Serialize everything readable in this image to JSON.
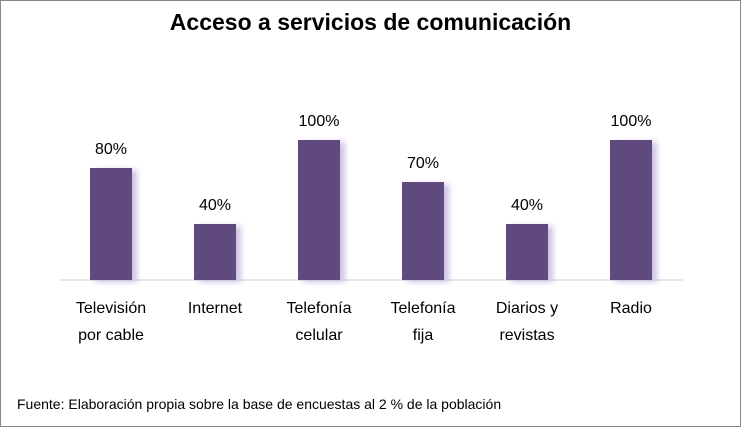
{
  "chart_data": {
    "type": "bar",
    "title": "Acceso a servicios de comunicación",
    "categories": [
      [
        "Televisión",
        "por cable"
      ],
      [
        "Internet"
      ],
      [
        "Telefonía",
        "celular"
      ],
      [
        "Telefonía",
        "fija"
      ],
      [
        "Diarios y",
        "revistas"
      ],
      [
        "Radio"
      ]
    ],
    "values": [
      80,
      40,
      100,
      70,
      40,
      100
    ],
    "value_labels": [
      "80%",
      "40%",
      "100%",
      "70%",
      "40%",
      "100%"
    ],
    "ylim": [
      0,
      100
    ],
    "xlabel": "",
    "ylabel": "",
    "grid": false,
    "legend": "none",
    "bar_color": "#5E4A7D"
  },
  "source_note": "Fuente:  Elaboración propia sobre la base de encuestas al 2 % de la población"
}
